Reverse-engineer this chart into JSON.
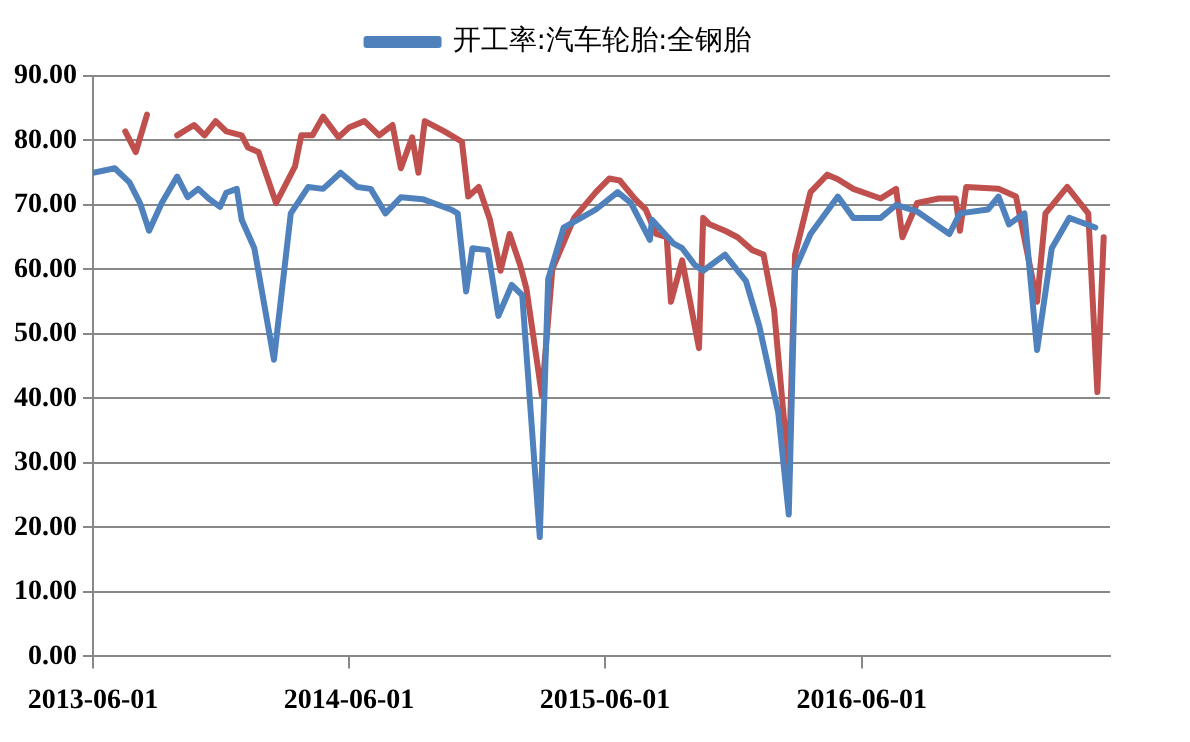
{
  "chart_data": {
    "type": "line",
    "xlim": [
      "2013-06-01",
      "2017-05-21"
    ],
    "xticks": [
      "2013-06-01",
      "2014-06-01",
      "2015-06-01",
      "2016-06-01"
    ],
    "ylim": [
      0,
      90
    ],
    "yticks": [
      {
        "value": 0,
        "label": "0.00"
      },
      {
        "value": 10,
        "label": "10.00"
      },
      {
        "value": 20,
        "label": "20.00"
      },
      {
        "value": 30,
        "label": "30.00"
      },
      {
        "value": 40,
        "label": "40.00"
      },
      {
        "value": 50,
        "label": "50.00"
      },
      {
        "value": 60,
        "label": "60.00"
      },
      {
        "value": 70,
        "label": "70.00"
      },
      {
        "value": 80,
        "label": "80.00"
      },
      {
        "value": 90,
        "label": "90.00"
      }
    ],
    "grid": "y",
    "legend": "top",
    "marker": "none",
    "line_style": "solid",
    "series": [
      {
        "name": "开工率:汽车轮胎:全钢胎",
        "color": "#4f81bd",
        "x": [
          "2013-06-01",
          "2013-07-02",
          "2013-07-23",
          "2013-08-07",
          "2013-08-20",
          "2013-09-07",
          "2013-09-29",
          "2013-10-14",
          "2013-10-29",
          "2013-11-14",
          "2013-11-29",
          "2013-12-08",
          "2013-12-23",
          "2013-12-30",
          "2014-01-17",
          "2014-02-14",
          "2014-03-10",
          "2014-04-04",
          "2014-04-25",
          "2014-05-20",
          "2014-06-13",
          "2014-07-02",
          "2014-07-23",
          "2014-08-14",
          "2014-09-14",
          "2014-10-24",
          "2014-11-03",
          "2014-11-15",
          "2014-11-24",
          "2014-12-16",
          "2014-12-31",
          "2015-01-19",
          "2015-02-03",
          "2015-02-28",
          "2015-03-12",
          "2015-04-03",
          "2015-04-28",
          "2015-05-19",
          "2015-06-19",
          "2015-07-08",
          "2015-08-04",
          "2015-08-07",
          "2015-09-07",
          "2015-09-19",
          "2015-10-07",
          "2015-10-19",
          "2015-11-19",
          "2015-12-19",
          "2016-01-07",
          "2016-02-03",
          "2016-02-18",
          "2016-02-27",
          "2016-03-20",
          "2016-04-28",
          "2016-05-20",
          "2016-06-28",
          "2016-07-20",
          "2016-08-19",
          "2016-10-04",
          "2016-10-19",
          "2016-11-28",
          "2016-12-13",
          "2016-12-28",
          "2017-01-19",
          "2017-02-06",
          "2017-02-27",
          "2017-03-24",
          "2017-04-30"
        ],
        "values": [
          75,
          75.7,
          73.5,
          70.3,
          66,
          70.3,
          74.4,
          71.2,
          72.5,
          70.9,
          69.7,
          71.9,
          72.5,
          67.7,
          63.3,
          46,
          68.7,
          72.8,
          72.5,
          75,
          72.8,
          72.5,
          68.7,
          71.2,
          70.9,
          69.3,
          68.7,
          56.6,
          63.3,
          63,
          52.8,
          57.6,
          56,
          18.5,
          58.5,
          66.5,
          68,
          69.3,
          72,
          70.3,
          64.6,
          67.7,
          64,
          63.3,
          60.7,
          59.8,
          62.3,
          58.2,
          51.2,
          37.8,
          22,
          60,
          65.5,
          71.3,
          68,
          68,
          70,
          69,
          65.5,
          68.7,
          69.3,
          71.3,
          67,
          68.7,
          47.5,
          63.3,
          68,
          66.5
        ]
      },
      {
        "color": "#c0504d",
        "x": [
          "2013-07-17",
          "2013-08-01",
          "2013-08-17",
          "2013-09-07",
          "2013-09-29",
          "2013-10-23",
          "2013-11-07",
          "2013-11-23",
          "2013-12-08",
          "2013-12-30",
          "2014-01-08",
          "2014-01-23",
          "2014-02-17",
          "2014-03-16",
          "2014-03-25",
          "2014-04-10",
          "2014-04-25",
          "2014-05-17",
          "2014-06-01",
          "2014-06-23",
          "2014-07-14",
          "2014-08-02",
          "2014-08-14",
          "2014-08-30",
          "2014-09-08",
          "2014-09-17",
          "2014-10-15",
          "2014-11-09",
          "2014-11-18",
          "2014-12-03",
          "2014-12-19",
          "2015-01-03",
          "2015-01-16",
          "2015-01-31",
          "2015-02-09",
          "2015-03-03",
          "2015-03-18",
          "2015-04-18",
          "2015-05-19",
          "2015-06-07",
          "2015-06-22",
          "2015-07-14",
          "2015-07-29",
          "2015-08-13",
          "2015-08-28",
          "2015-09-03",
          "2015-09-19",
          "2015-10-13",
          "2015-10-19",
          "2015-10-28",
          "2015-11-19",
          "2015-12-07",
          "2015-12-28",
          "2016-01-13",
          "2016-01-28",
          "2016-02-18",
          "2016-02-27",
          "2016-03-20",
          "2016-04-13",
          "2016-04-28",
          "2016-05-20",
          "2016-06-28",
          "2016-07-20",
          "2016-07-29",
          "2016-08-19",
          "2016-09-19",
          "2016-10-13",
          "2016-10-19",
          "2016-10-28",
          "2016-12-13",
          "2017-01-07",
          "2017-02-06",
          "2017-02-18",
          "2017-03-21",
          "2017-04-20",
          "2017-05-03",
          "2017-05-12"
        ],
        "values": [
          81.4,
          78.2,
          84,
          null,
          80.8,
          82.4,
          80.8,
          83,
          81.4,
          80.8,
          78.9,
          78.2,
          70.3,
          76,
          80.8,
          80.8,
          83.7,
          80.5,
          82,
          83,
          80.8,
          82.4,
          75.7,
          80.5,
          75,
          83,
          81.4,
          79.8,
          71.3,
          72.8,
          67.7,
          59.8,
          65.5,
          60.7,
          57,
          40.5,
          60.1,
          68,
          72,
          74.1,
          73.8,
          70.9,
          69.3,
          65.5,
          65,
          55,
          61.4,
          47.8,
          68,
          67,
          66,
          65,
          63,
          62.3,
          53.8,
          28.5,
          62.3,
          72,
          74.7,
          74,
          72.5,
          71,
          72.5,
          65,
          70.3,
          71,
          71,
          66,
          72.8,
          72.5,
          71.3,
          55,
          68.7,
          72.8,
          68.7,
          41,
          65
        ]
      }
    ]
  }
}
